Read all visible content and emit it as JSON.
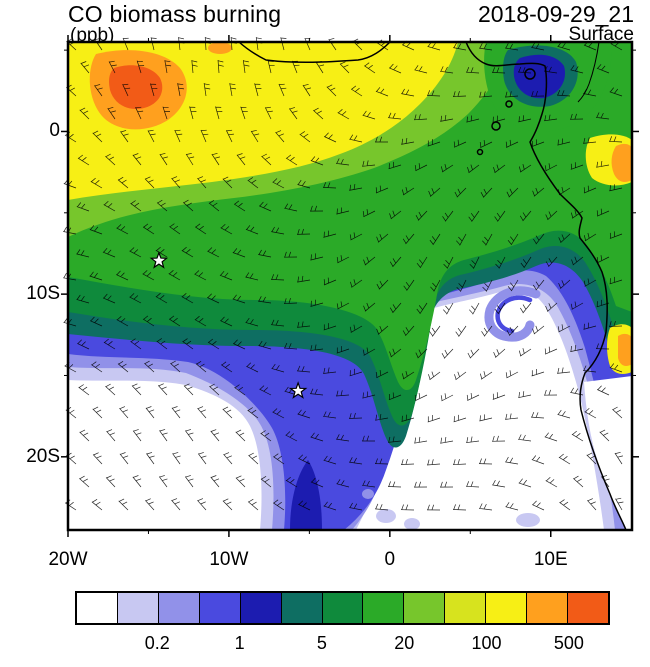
{
  "header": {
    "title": "CO biomass burning",
    "units_label": "(ppb)",
    "timestamp": "2018-09-29_21",
    "level_label": "Surface"
  },
  "axes": {
    "lat_ticks": [
      {
        "label": "0",
        "lat": 0
      },
      {
        "label": "10S",
        "lat": -10
      },
      {
        "label": "20S",
        "lat": -20
      }
    ],
    "lon_ticks": [
      {
        "label": "20W",
        "lon": -20
      },
      {
        "label": "10W",
        "lon": -10
      },
      {
        "label": "0",
        "lon": 0
      },
      {
        "label": "10E",
        "lon": 10
      }
    ]
  },
  "colorbar": {
    "colors": [
      "#FFFFFF",
      "#C8C8F2",
      "#9191E9",
      "#4A4ADF",
      "#1C1CB0",
      "#0E6E62",
      "#0F8A3C",
      "#2BAA28",
      "#77C62C",
      "#D7E31E",
      "#F7EF15",
      "#FFA01E",
      "#F25B17"
    ],
    "labels": [
      "0.2",
      "1",
      "5",
      "20",
      "100",
      "500"
    ]
  },
  "chart_data": {
    "type": "heatmap",
    "title": "CO biomass burning",
    "units": "ppb",
    "timestamp": "2018-09-29_21",
    "level": "Surface",
    "lon_range": [
      -20,
      15
    ],
    "lat_range": [
      -24.5,
      5.5
    ],
    "lon_tick_labels": [
      "20W",
      "10W",
      "0",
      "10E"
    ],
    "lat_tick_labels": [
      "0",
      "10S",
      "20S"
    ],
    "contour_levels": [
      0.1,
      0.2,
      0.5,
      1,
      2,
      5,
      10,
      20,
      50,
      100,
      200,
      500
    ],
    "labeled_levels": [
      "0.2",
      "1",
      "5",
      "20",
      "100",
      "500"
    ],
    "palette": [
      "#FFFFFF",
      "#C8C8F2",
      "#9191E9",
      "#4A4ADF",
      "#1C1CB0",
      "#0E6E62",
      "#0F8A3C",
      "#2BAA28",
      "#77C62C",
      "#D7E31E",
      "#F7EF15",
      "#FFA01E",
      "#F25B17"
    ],
    "overlays": [
      "wind barbs",
      "coastline",
      "star markers"
    ],
    "markers": [
      {
        "name": "star-1",
        "lon": -14.35,
        "lat": -7.95
      },
      {
        "name": "star-2",
        "lon": -5.7,
        "lat": -15.95
      }
    ],
    "field_description": "High CO plume (yellow/orange, >100 ppb) over the tropical Atlantic northwest sector, green mid values arcing southeast, clean white air (<0.2 ppb) in the subtropical south-central ocean with a cyclonic hook, elevated values hugging the Angolan coast"
  }
}
